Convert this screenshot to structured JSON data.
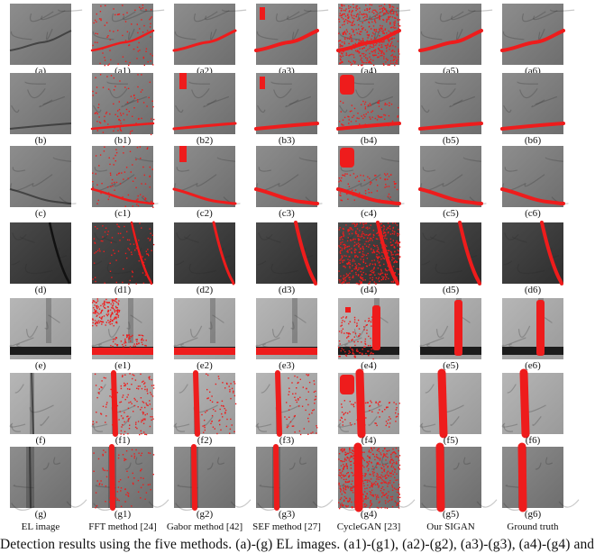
{
  "colors": {
    "defect": "#ee1c1c",
    "bg": "#ffffff"
  },
  "rows": [
    {
      "id": "a",
      "tone": "mid",
      "labels": [
        "(a)",
        "(a1)",
        "(a2)",
        "(a3)",
        "(a4)",
        "(a5)",
        "(a6)"
      ]
    },
    {
      "id": "b",
      "tone": "mid",
      "labels": [
        "(b)",
        "(b1)",
        "(b2)",
        "(b3)",
        "(b4)",
        "(b5)",
        "(b6)"
      ]
    },
    {
      "id": "c",
      "tone": "mid",
      "labels": [
        "(c)",
        "(c1)",
        "(c2)",
        "(c3)",
        "(c4)",
        "(c5)",
        "(c6)"
      ]
    },
    {
      "id": "d",
      "tone": "dark",
      "labels": [
        "(d)",
        "(d1)",
        "(d2)",
        "(d3)",
        "(d4)",
        "(d5)",
        "(d6)"
      ]
    },
    {
      "id": "e",
      "tone": "light",
      "labels": [
        "(e)",
        "(e1)",
        "(e2)",
        "(e3)",
        "(e4)",
        "(e5)",
        "(e6)"
      ]
    },
    {
      "id": "f",
      "tone": "light",
      "labels": [
        "(f)",
        "(f1)",
        "(f2)",
        "(f3)",
        "(f4)",
        "(f5)",
        "(f6)"
      ]
    },
    {
      "id": "g",
      "tone": "mid",
      "labels": [
        "(g)",
        "(g1)",
        "(g2)",
        "(g3)",
        "(g4)",
        "(g5)",
        "(g6)"
      ]
    }
  ],
  "column_titles": [
    "EL image",
    "FFT method [24]",
    "Gabor method [42]",
    "SEF method [27]",
    "CycleGAN [23]",
    "Our SIGAN",
    "Ground truth"
  ],
  "caption": "Detection results using the five methods. (a)-(g) EL images. (a1)-(g1), (a2)-(g2), (a3)-(g3), (a4)-(g4) and"
}
